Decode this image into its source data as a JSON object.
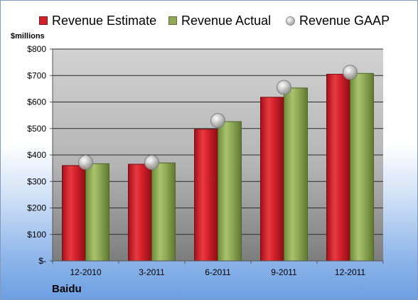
{
  "chart_data": {
    "type": "bar",
    "unit_label": "$millions",
    "company": "Baidu",
    "categories": [
      "12-2010",
      "3-2011",
      "6-2011",
      "9-2011",
      "12-2011"
    ],
    "y_ticks": [
      "$-",
      "$100",
      "$200",
      "$300",
      "$400",
      "$500",
      "$600",
      "$700",
      "$800"
    ],
    "ylim": [
      0,
      800
    ],
    "grid": true,
    "legend_position": "top",
    "series": [
      {
        "name": "Revenue Estimate",
        "kind": "bar",
        "color": "#d0202a",
        "values": [
          360,
          365,
          497,
          618,
          705
        ]
      },
      {
        "name": "Revenue Actual",
        "kind": "bar",
        "color": "#8fa956",
        "values": [
          367,
          370,
          526,
          653,
          708
        ]
      },
      {
        "name": "Revenue GAAP",
        "kind": "marker",
        "color": "#b8b8b8",
        "values": [
          372,
          372,
          530,
          655,
          712
        ]
      }
    ]
  }
}
